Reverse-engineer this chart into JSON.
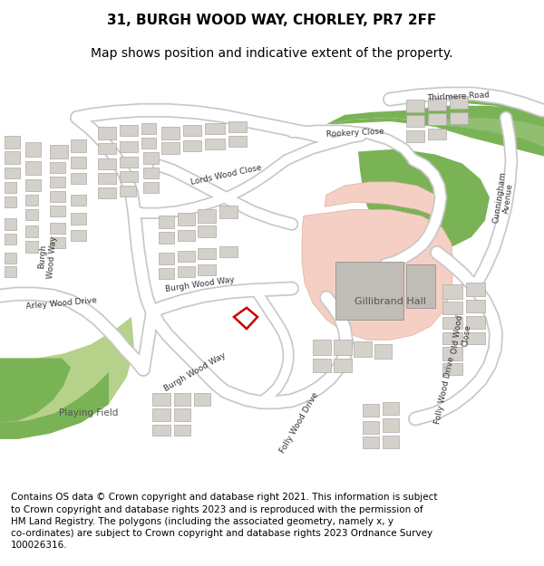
{
  "title_line1": "31, BURGH WOOD WAY, CHORLEY, PR7 2FF",
  "title_line2": "Map shows position and indicative extent of the property.",
  "footer_text": "Contains OS data © Crown copyright and database right 2021. This information is subject\nto Crown copyright and database rights 2023 and is reproduced with the permission of\nHM Land Registry. The polygons (including the associated geometry, namely x, y\nco-ordinates) are subject to Crown copyright and database rights 2023 Ordnance Survey\n100026316.",
  "title_fontsize": 11,
  "subtitle_fontsize": 10,
  "footer_fontsize": 7.5,
  "bg_color": "#ffffff",
  "map_bg": "#f0ede6",
  "road_color": "#ffffff",
  "road_outline": "#cccccc",
  "building_color": "#d4d0ca",
  "building_outline": "#aaaaaa",
  "green_dark": "#7ab356",
  "green_light": "#b5d18a",
  "pink_area": "#f5cfc4",
  "plot_color": "#cc0000",
  "plot_lw": 1.8
}
